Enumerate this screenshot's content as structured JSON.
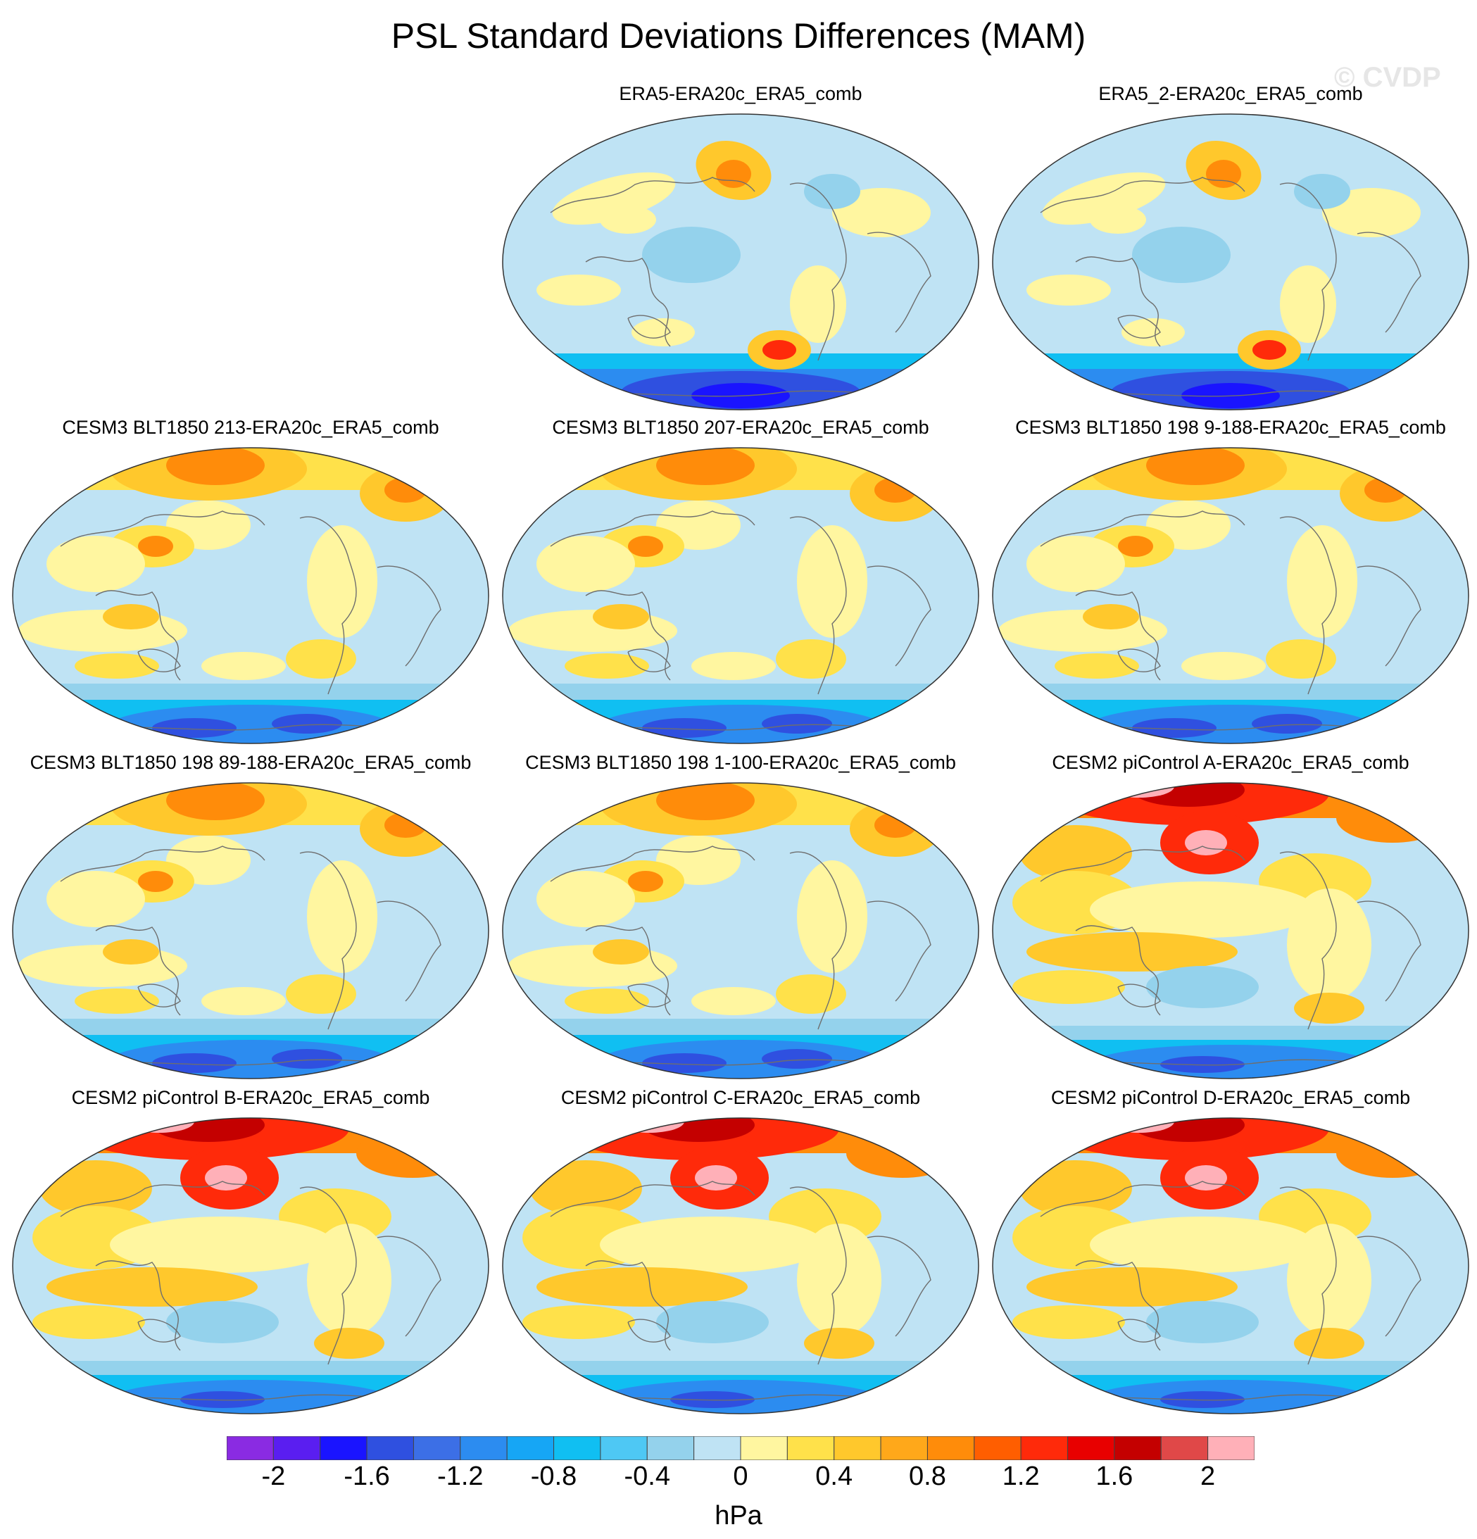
{
  "title": "PSL Standard Deviations Differences (MAM)",
  "watermark": "© CVDP",
  "panels": [
    {
      "title": "ERA5-ERA20c_ERA5_comb",
      "pattern": "era"
    },
    {
      "title": "ERA5_2-ERA20c_ERA5_comb",
      "pattern": "era"
    },
    {
      "title": "CESM3 BLT1850 213-ERA20c_ERA5_comb",
      "pattern": "blt"
    },
    {
      "title": "CESM3 BLT1850 207-ERA20c_ERA5_comb",
      "pattern": "blt"
    },
    {
      "title": "CESM3 BLT1850 198 9-188-ERA20c_ERA5_comb",
      "pattern": "blt"
    },
    {
      "title": "CESM3 BLT1850 198 89-188-ERA20c_ERA5_comb",
      "pattern": "blt"
    },
    {
      "title": "CESM3 BLT1850 198 1-100-ERA20c_ERA5_comb",
      "pattern": "blt"
    },
    {
      "title": "CESM2 piControl A-ERA20c_ERA5_comb",
      "pattern": "pic"
    },
    {
      "title": "CESM2 piControl B-ERA20c_ERA5_comb",
      "pattern": "pic"
    },
    {
      "title": "CESM2 piControl C-ERA20c_ERA5_comb",
      "pattern": "pic"
    },
    {
      "title": "CESM2 piControl D-ERA20c_ERA5_comb",
      "pattern": "pic"
    }
  ],
  "colorbar": {
    "units": "hPa",
    "tick_labels": [
      "-2",
      "-1.6",
      "-1.2",
      "-0.8",
      "-0.4",
      "0",
      "0.4",
      "0.8",
      "1.2",
      "1.6",
      "2"
    ],
    "colors": [
      "#8a2be2",
      "#5a1ef0",
      "#1a14ff",
      "#2f50e0",
      "#3c6fe6",
      "#2c8cf0",
      "#16a6f5",
      "#10bff2",
      "#4ec8f4",
      "#94d2ec",
      "#bfe3f4",
      "#fff6a0",
      "#ffe14a",
      "#ffc82c",
      "#ffa81a",
      "#ff8c0a",
      "#ff5e00",
      "#ff2a0a",
      "#e80000",
      "#c40000",
      "#e04848",
      "#ffb0b8"
    ]
  }
}
